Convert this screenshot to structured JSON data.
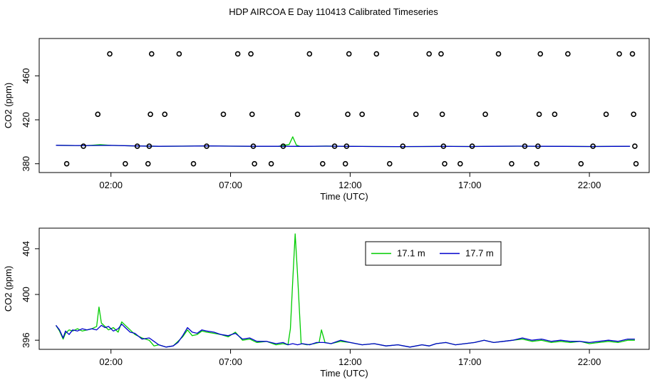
{
  "page": {
    "title": "HDP AIRCOA E  Day 110413  Calibrated Timeseries"
  },
  "chart_data": [
    {
      "type": "scatter+line",
      "title": "",
      "xlabel": "Time (UTC)",
      "ylabel": "CO2 (ppm)",
      "xlim": [
        -1.0,
        24.5
      ],
      "ylim": [
        372,
        494
      ],
      "x_ticks": [
        {
          "value": 2,
          "label": "02:00"
        },
        {
          "value": 7,
          "label": "07:00"
        },
        {
          "value": 12,
          "label": "12:00"
        },
        {
          "value": 17,
          "label": "17:00"
        },
        {
          "value": 22,
          "label": "22:00"
        }
      ],
      "y_ticks": [
        {
          "value": 380,
          "label": "380"
        },
        {
          "value": 420,
          "label": "420"
        },
        {
          "value": 460,
          "label": "460"
        }
      ],
      "grid": false,
      "calibration_points": [
        {
          "x": 0.15,
          "y": 380
        },
        {
          "x": 0.85,
          "y": 396
        },
        {
          "x": 1.45,
          "y": 425
        },
        {
          "x": 1.95,
          "y": 480
        },
        {
          "x": 2.6,
          "y": 380
        },
        {
          "x": 3.1,
          "y": 396
        },
        {
          "x": 3.55,
          "y": 380
        },
        {
          "x": 3.6,
          "y": 396
        },
        {
          "x": 3.65,
          "y": 425
        },
        {
          "x": 3.7,
          "y": 480
        },
        {
          "x": 4.25,
          "y": 425
        },
        {
          "x": 4.85,
          "y": 480
        },
        {
          "x": 5.45,
          "y": 380
        },
        {
          "x": 6.0,
          "y": 396
        },
        {
          "x": 6.7,
          "y": 425
        },
        {
          "x": 7.3,
          "y": 480
        },
        {
          "x": 7.85,
          "y": 480
        },
        {
          "x": 7.9,
          "y": 425
        },
        {
          "x": 7.95,
          "y": 396
        },
        {
          "x": 8.0,
          "y": 380
        },
        {
          "x": 8.7,
          "y": 380
        },
        {
          "x": 9.2,
          "y": 396
        },
        {
          "x": 9.8,
          "y": 425
        },
        {
          "x": 10.3,
          "y": 480
        },
        {
          "x": 10.85,
          "y": 380
        },
        {
          "x": 11.35,
          "y": 396
        },
        {
          "x": 11.8,
          "y": 380
        },
        {
          "x": 11.85,
          "y": 396
        },
        {
          "x": 11.9,
          "y": 425
        },
        {
          "x": 11.95,
          "y": 480
        },
        {
          "x": 12.5,
          "y": 425
        },
        {
          "x": 13.1,
          "y": 480
        },
        {
          "x": 13.65,
          "y": 380
        },
        {
          "x": 14.2,
          "y": 396
        },
        {
          "x": 14.75,
          "y": 425
        },
        {
          "x": 15.3,
          "y": 480
        },
        {
          "x": 15.8,
          "y": 480
        },
        {
          "x": 15.85,
          "y": 425
        },
        {
          "x": 15.9,
          "y": 396
        },
        {
          "x": 15.95,
          "y": 380
        },
        {
          "x": 16.6,
          "y": 380
        },
        {
          "x": 17.1,
          "y": 396
        },
        {
          "x": 17.65,
          "y": 425
        },
        {
          "x": 18.2,
          "y": 480
        },
        {
          "x": 18.75,
          "y": 380
        },
        {
          "x": 19.3,
          "y": 396
        },
        {
          "x": 19.8,
          "y": 380
        },
        {
          "x": 19.85,
          "y": 396
        },
        {
          "x": 19.9,
          "y": 425
        },
        {
          "x": 19.95,
          "y": 480
        },
        {
          "x": 20.55,
          "y": 425
        },
        {
          "x": 21.1,
          "y": 480
        },
        {
          "x": 21.65,
          "y": 380
        },
        {
          "x": 22.15,
          "y": 396
        },
        {
          "x": 22.7,
          "y": 425
        },
        {
          "x": 23.25,
          "y": 480
        },
        {
          "x": 23.8,
          "y": 480
        },
        {
          "x": 23.85,
          "y": 425
        },
        {
          "x": 23.9,
          "y": 396
        },
        {
          "x": 23.95,
          "y": 380
        }
      ],
      "series": [
        {
          "color": "#00cc00",
          "x": [
            -0.3,
            0.5,
            1.0,
            1.55,
            2.0,
            3.0,
            4.0,
            5.0,
            6.0,
            7.0,
            8.0,
            9.0,
            9.45,
            9.6,
            9.75,
            9.9,
            10.2,
            11.0,
            12.0,
            13.0,
            14.0,
            15.0,
            16.0,
            17.0,
            18.0,
            19.0,
            20.0,
            21.0,
            22.0,
            23.0,
            23.7
          ],
          "y": [
            396.8,
            396.6,
            396.5,
            397.4,
            396.7,
            396.2,
            395.9,
            396.0,
            396.2,
            396.0,
            395.9,
            395.9,
            397.5,
            404.5,
            397.0,
            395.9,
            395.8,
            396.1,
            395.8,
            395.7,
            395.6,
            395.7,
            395.8,
            395.7,
            395.9,
            396.0,
            395.9,
            395.8,
            395.7,
            395.8,
            395.9
          ]
        },
        {
          "color": "#0000cc",
          "x": [
            -0.3,
            0.5,
            1.0,
            2.0,
            3.0,
            4.0,
            5.0,
            6.0,
            7.0,
            8.0,
            9.0,
            10.0,
            11.0,
            12.0,
            13.0,
            14.0,
            15.0,
            16.0,
            17.0,
            18.0,
            19.0,
            20.0,
            21.0,
            22.0,
            23.0,
            23.7
          ],
          "y": [
            396.8,
            396.6,
            396.5,
            396.7,
            396.2,
            395.9,
            396.0,
            396.2,
            396.0,
            395.9,
            395.9,
            395.8,
            396.0,
            395.8,
            395.7,
            395.6,
            395.7,
            395.8,
            395.7,
            395.9,
            396.0,
            395.9,
            395.8,
            395.7,
            395.8,
            395.9
          ]
        }
      ]
    },
    {
      "type": "line",
      "title": "",
      "xlabel": "Time (UTC)",
      "ylabel": "CO2 (ppm)",
      "xlim": [
        -1.0,
        24.5
      ],
      "ylim": [
        395.2,
        405.8
      ],
      "x_ticks": [
        {
          "value": 2,
          "label": "02:00"
        },
        {
          "value": 7,
          "label": "07:00"
        },
        {
          "value": 12,
          "label": "12:00"
        },
        {
          "value": 17,
          "label": "17:00"
        },
        {
          "value": 22,
          "label": "22:00"
        }
      ],
      "y_ticks": [
        {
          "value": 396,
          "label": "396"
        },
        {
          "value": 400,
          "label": "400"
        },
        {
          "value": 404,
          "label": "404"
        }
      ],
      "grid": false,
      "legend": {
        "position": "top-right",
        "entries": [
          {
            "name": "17.1 m",
            "color": "#00cc00"
          },
          {
            "name": "17.7 m",
            "color": "#0000cc"
          }
        ]
      },
      "series": [
        {
          "name": "17.1 m",
          "color": "#00cc00",
          "x": [
            -0.3,
            -0.15,
            0.0,
            0.1,
            0.25,
            0.4,
            0.6,
            0.8,
            1.0,
            1.2,
            1.4,
            1.5,
            1.6,
            1.75,
            1.9,
            2.1,
            2.3,
            2.45,
            2.6,
            2.8,
            3.0,
            3.3,
            3.6,
            3.8,
            4.0,
            4.3,
            4.6,
            4.8,
            5.0,
            5.2,
            5.4,
            5.6,
            5.8,
            6.0,
            6.3,
            6.6,
            6.9,
            7.2,
            7.5,
            7.8,
            8.1,
            8.5,
            8.9,
            9.2,
            9.4,
            9.5,
            9.6,
            9.7,
            9.8,
            9.95,
            10.2,
            10.5,
            10.7,
            10.8,
            10.95,
            11.2,
            11.6,
            12.0,
            12.5,
            13.0,
            13.5,
            14.0,
            14.5,
            15.0,
            15.3,
            15.6,
            16.0,
            16.4,
            16.8,
            17.2,
            17.6,
            18.0,
            18.4,
            18.8,
            19.2,
            19.6,
            20.0,
            20.4,
            20.8,
            21.2,
            21.6,
            22.0,
            22.4,
            22.8,
            23.2,
            23.6,
            23.9
          ],
          "y": [
            397.3,
            396.8,
            396.1,
            396.6,
            396.9,
            396.8,
            397.0,
            396.8,
            396.9,
            397.0,
            397.2,
            398.9,
            397.5,
            397.2,
            396.9,
            397.1,
            396.7,
            397.6,
            397.3,
            396.9,
            396.5,
            396.2,
            396.0,
            395.5,
            395.6,
            395.4,
            395.5,
            395.9,
            396.3,
            396.9,
            396.4,
            396.5,
            396.8,
            396.7,
            396.6,
            396.5,
            396.3,
            396.7,
            396.0,
            396.1,
            395.8,
            395.9,
            395.6,
            395.7,
            395.6,
            397.0,
            401.2,
            405.3,
            401.8,
            395.7,
            395.6,
            395.7,
            395.8,
            396.9,
            395.8,
            395.7,
            395.9,
            395.8,
            395.6,
            395.7,
            395.5,
            395.6,
            395.4,
            395.6,
            395.5,
            395.7,
            395.8,
            395.6,
            395.7,
            395.8,
            396.0,
            395.8,
            395.9,
            396.0,
            396.1,
            395.9,
            396.0,
            395.8,
            395.9,
            395.8,
            395.9,
            395.7,
            395.8,
            395.9,
            395.8,
            396.0,
            396.0
          ]
        },
        {
          "name": "17.7 m",
          "color": "#0000cc",
          "x": [
            -0.3,
            -0.15,
            0.0,
            0.1,
            0.25,
            0.4,
            0.6,
            0.8,
            1.0,
            1.2,
            1.4,
            1.6,
            1.75,
            1.9,
            2.1,
            2.3,
            2.45,
            2.6,
            2.8,
            3.0,
            3.3,
            3.6,
            3.8,
            4.0,
            4.3,
            4.6,
            4.8,
            5.0,
            5.2,
            5.4,
            5.6,
            5.8,
            6.0,
            6.3,
            6.6,
            6.9,
            7.2,
            7.5,
            7.8,
            8.1,
            8.5,
            8.9,
            9.2,
            9.4,
            9.6,
            9.8,
            10.0,
            10.3,
            10.6,
            10.9,
            11.2,
            11.6,
            12.0,
            12.5,
            13.0,
            13.5,
            14.0,
            14.5,
            15.0,
            15.3,
            15.6,
            16.0,
            16.4,
            16.8,
            17.2,
            17.6,
            18.0,
            18.4,
            18.8,
            19.2,
            19.6,
            20.0,
            20.4,
            20.8,
            21.2,
            21.6,
            22.0,
            22.4,
            22.8,
            23.2,
            23.6,
            23.9
          ],
          "y": [
            397.3,
            396.9,
            396.2,
            396.8,
            396.5,
            396.9,
            396.8,
            397.0,
            396.9,
            397.0,
            396.9,
            397.3,
            397.1,
            397.2,
            396.8,
            397.0,
            397.4,
            397.1,
            396.7,
            396.6,
            396.1,
            396.2,
            395.9,
            395.6,
            395.4,
            395.5,
            395.8,
            396.4,
            397.1,
            396.7,
            396.6,
            396.9,
            396.8,
            396.7,
            396.5,
            396.4,
            396.6,
            396.1,
            396.2,
            395.9,
            395.9,
            395.7,
            395.8,
            395.6,
            395.7,
            395.6,
            395.7,
            395.6,
            395.8,
            395.8,
            395.7,
            396.0,
            395.8,
            395.6,
            395.7,
            395.5,
            395.6,
            395.4,
            395.6,
            395.5,
            395.7,
            395.8,
            395.6,
            395.7,
            395.8,
            396.0,
            395.8,
            395.9,
            396.0,
            396.2,
            396.0,
            396.1,
            395.9,
            396.0,
            395.9,
            395.9,
            395.8,
            395.9,
            396.0,
            395.9,
            396.1,
            396.1
          ]
        }
      ]
    }
  ]
}
